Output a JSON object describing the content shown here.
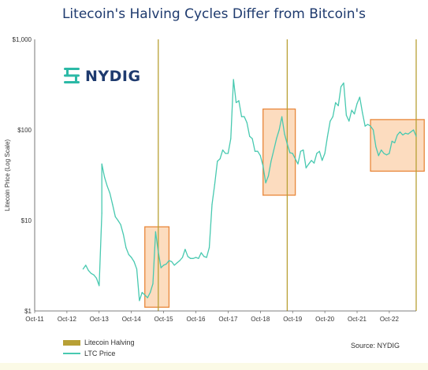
{
  "chart_data": {
    "type": "line",
    "title": "Litecoin's Halving Cycles Differ from Bitcoin's",
    "ylabel": "Litecoin Price (Log Scale)",
    "xlabel": "",
    "y_scale": "log",
    "ylim": [
      1,
      1000
    ],
    "y_ticks": [
      "$1",
      "$10",
      "$100",
      "$1,000"
    ],
    "x_ticks": [
      "Oct-11",
      "Oct-12",
      "Oct-13",
      "Oct-14",
      "Oct-15",
      "Oct-16",
      "Oct-17",
      "Oct-18",
      "Oct-19",
      "Oct-20",
      "Oct-21",
      "Oct-22"
    ],
    "xlim": [
      "2011-10",
      "2023-08"
    ],
    "grid": false,
    "legend": [
      "Litecoin Halving",
      "LTC Price"
    ],
    "legend_position": "bottom-left",
    "source": "Source: NYDIG",
    "halvings": [
      "2015-08",
      "2019-08",
      "2023-08"
    ],
    "highlight_boxes": [
      {
        "x": [
          "2015-03",
          "2015-12"
        ],
        "y": [
          1.1,
          8.5
        ]
      },
      {
        "x": [
          "2018-11",
          "2019-11"
        ],
        "y": [
          19,
          170
        ]
      },
      {
        "x": [
          "2022-03",
          "2023-11"
        ],
        "y": [
          35,
          130
        ]
      }
    ],
    "series": [
      {
        "name": "LTC Price",
        "color": "#48c9b0",
        "points": [
          [
            "2013-04",
            2.9
          ],
          [
            "2013-05",
            3.2
          ],
          [
            "2013-06",
            2.8
          ],
          [
            "2013-07",
            2.6
          ],
          [
            "2013-08",
            2.5
          ],
          [
            "2013-09",
            2.3
          ],
          [
            "2013-10",
            1.9
          ],
          [
            "2013-11",
            12
          ],
          [
            "2013-11",
            42
          ],
          [
            "2013-12",
            30
          ],
          [
            "2014-01",
            24
          ],
          [
            "2014-02",
            20
          ],
          [
            "2014-03",
            15
          ],
          [
            "2014-04",
            11
          ],
          [
            "2014-05",
            10
          ],
          [
            "2014-06",
            9
          ],
          [
            "2014-07",
            7
          ],
          [
            "2014-08",
            5
          ],
          [
            "2014-09",
            4.2
          ],
          [
            "2014-10",
            3.9
          ],
          [
            "2014-11",
            3.5
          ],
          [
            "2014-12",
            2.9
          ],
          [
            "2015-01",
            1.3
          ],
          [
            "2015-02",
            1.6
          ],
          [
            "2015-03",
            1.5
          ],
          [
            "2015-04",
            1.4
          ],
          [
            "2015-05",
            1.6
          ],
          [
            "2015-06",
            2.0
          ],
          [
            "2015-07",
            7.5
          ],
          [
            "2015-08",
            4.5
          ],
          [
            "2015-09",
            3.0
          ],
          [
            "2015-10",
            3.2
          ],
          [
            "2015-11",
            3.3
          ],
          [
            "2015-12",
            3.6
          ],
          [
            "2016-01",
            3.5
          ],
          [
            "2016-02",
            3.2
          ],
          [
            "2016-03",
            3.4
          ],
          [
            "2016-04",
            3.6
          ],
          [
            "2016-05",
            3.9
          ],
          [
            "2016-06",
            4.8
          ],
          [
            "2016-07",
            4.0
          ],
          [
            "2016-08",
            3.8
          ],
          [
            "2016-09",
            3.8
          ],
          [
            "2016-10",
            3.9
          ],
          [
            "2016-11",
            3.8
          ],
          [
            "2016-12",
            4.4
          ],
          [
            "2017-01",
            4.0
          ],
          [
            "2017-02",
            3.9
          ],
          [
            "2017-03",
            5.0
          ],
          [
            "2017-04",
            15
          ],
          [
            "2017-05",
            25
          ],
          [
            "2017-06",
            45
          ],
          [
            "2017-07",
            48
          ],
          [
            "2017-08",
            60
          ],
          [
            "2017-09",
            55
          ],
          [
            "2017-10",
            55
          ],
          [
            "2017-11",
            80
          ],
          [
            "2017-12",
            360
          ],
          [
            "2018-01",
            200
          ],
          [
            "2018-02",
            210
          ],
          [
            "2018-03",
            140
          ],
          [
            "2018-04",
            140
          ],
          [
            "2018-05",
            120
          ],
          [
            "2018-06",
            85
          ],
          [
            "2018-07",
            80
          ],
          [
            "2018-08",
            58
          ],
          [
            "2018-09",
            58
          ],
          [
            "2018-10",
            52
          ],
          [
            "2018-11",
            40
          ],
          [
            "2018-12",
            26
          ],
          [
            "2019-01",
            31
          ],
          [
            "2019-02",
            45
          ],
          [
            "2019-03",
            60
          ],
          [
            "2019-04",
            80
          ],
          [
            "2019-05",
            100
          ],
          [
            "2019-06",
            140
          ],
          [
            "2019-07",
            90
          ],
          [
            "2019-08",
            70
          ],
          [
            "2019-09",
            56
          ],
          [
            "2019-10",
            55
          ],
          [
            "2019-11",
            48
          ],
          [
            "2019-12",
            42
          ],
          [
            "2020-01",
            58
          ],
          [
            "2020-02",
            60
          ],
          [
            "2020-03",
            38
          ],
          [
            "2020-04",
            42
          ],
          [
            "2020-05",
            46
          ],
          [
            "2020-06",
            43
          ],
          [
            "2020-07",
            55
          ],
          [
            "2020-08",
            58
          ],
          [
            "2020-09",
            46
          ],
          [
            "2020-10",
            55
          ],
          [
            "2020-11",
            85
          ],
          [
            "2020-12",
            125
          ],
          [
            "2021-01",
            140
          ],
          [
            "2021-02",
            200
          ],
          [
            "2021-03",
            185
          ],
          [
            "2021-04",
            300
          ],
          [
            "2021-05",
            330
          ],
          [
            "2021-06",
            145
          ],
          [
            "2021-07",
            125
          ],
          [
            "2021-08",
            165
          ],
          [
            "2021-09",
            150
          ],
          [
            "2021-10",
            195
          ],
          [
            "2021-11",
            230
          ],
          [
            "2021-12",
            155
          ],
          [
            "2022-01",
            110
          ],
          [
            "2022-02",
            115
          ],
          [
            "2022-03",
            110
          ],
          [
            "2022-04",
            100
          ],
          [
            "2022-05",
            65
          ],
          [
            "2022-06",
            52
          ],
          [
            "2022-07",
            60
          ],
          [
            "2022-08",
            55
          ],
          [
            "2022-09",
            53
          ],
          [
            "2022-10",
            55
          ],
          [
            "2022-11",
            75
          ],
          [
            "2022-12",
            72
          ],
          [
            "2023-01",
            88
          ],
          [
            "2023-02",
            95
          ],
          [
            "2023-03",
            88
          ],
          [
            "2023-04",
            92
          ],
          [
            "2023-05",
            90
          ],
          [
            "2023-06",
            95
          ],
          [
            "2023-07",
            100
          ],
          [
            "2023-08",
            85
          ]
        ]
      }
    ]
  }
}
